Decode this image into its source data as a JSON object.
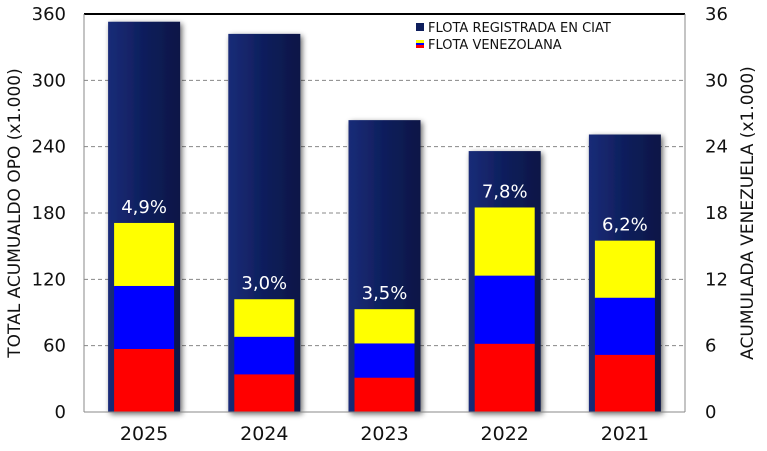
{
  "chart_data": {
    "type": "bar",
    "categories": [
      "2025",
      "2024",
      "2023",
      "2022",
      "2021"
    ],
    "series": [
      {
        "name": "FLOTA REGISTRADA EN CIAT",
        "axis": "left",
        "values": [
          353,
          342,
          264,
          236,
          251
        ]
      },
      {
        "name": "FLOTA VENEZOLANA",
        "axis": "right",
        "values": [
          17.1,
          10.2,
          9.3,
          18.5,
          15.5
        ]
      }
    ],
    "percent_labels": [
      "4,9%",
      "3,0%",
      "3,5%",
      "7,8%",
      "6,2%"
    ],
    "ylabel": "TOTAL ACUMUALDO OPO (x1.000)",
    "y2label": "ACUMULADA VENEZUELA (x1.000)",
    "ylim": [
      0,
      360
    ],
    "y2lim": [
      0,
      36
    ],
    "yticks": [
      "0",
      "60",
      "120",
      "180",
      "240",
      "300",
      "360"
    ],
    "y2ticks": [
      "0",
      "6",
      "12",
      "18",
      "24",
      "30",
      "36"
    ],
    "grid": true,
    "legend_position": "top-right",
    "colors": {
      "total_bar": "#0e1e5c",
      "flag_yellow": "#ffff00",
      "flag_blue": "#0000ff",
      "flag_red": "#ff0000",
      "grid": "#888888"
    }
  }
}
